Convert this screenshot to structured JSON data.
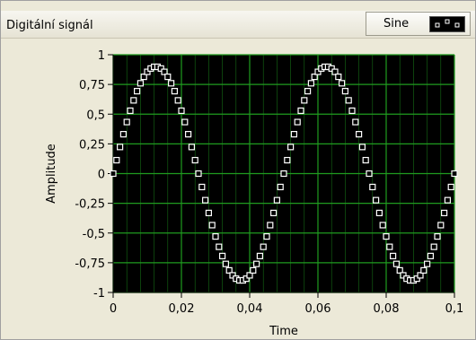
{
  "graph": {
    "title": "Digitální signál",
    "legend_label": "Sine",
    "legend_icon": "point-square-icon"
  },
  "colors": {
    "plot_background": "#000000",
    "grid": "#1f9b1f",
    "marker": "#ffffff",
    "panel": "#ece9d8"
  },
  "chart_data": {
    "type": "scatter",
    "title": "Digitální signál",
    "xlabel": "Time",
    "ylabel": "Amplitude",
    "xlim": [
      0,
      0.1
    ],
    "ylim": [
      -1,
      1
    ],
    "grid": true,
    "legend_placement": "top-right",
    "x_ticks": [
      0,
      0.02,
      0.04,
      0.06,
      0.08,
      0.1
    ],
    "x_tick_labels": [
      "0",
      "0,02",
      "0,04",
      "0,06",
      "0,08",
      "0,1"
    ],
    "y_ticks": [
      1,
      0.75,
      0.5,
      0.25,
      0,
      -0.25,
      -0.5,
      -0.75,
      -1
    ],
    "y_tick_labels": [
      "1",
      "0,75",
      "0,5",
      "0,25",
      "0",
      "-0,25",
      "-0,5",
      "-0,75",
      "-1"
    ],
    "series": [
      {
        "name": "Sine",
        "marker": "square",
        "amplitude": 0.9,
        "frequency_hz": 20,
        "sample_interval": 0.001,
        "x_start": 0,
        "x_end": 0.1
      }
    ]
  }
}
